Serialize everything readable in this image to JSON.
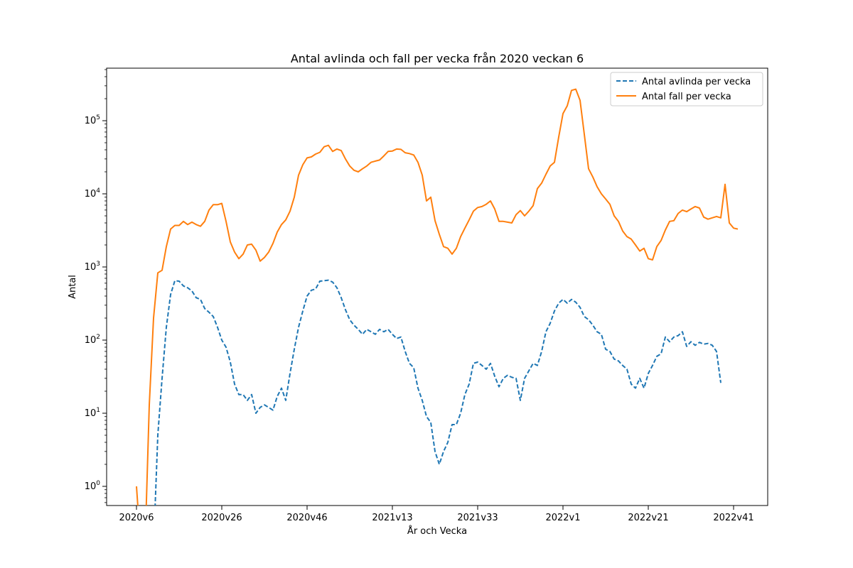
{
  "chart_data": {
    "type": "line",
    "title": "Antal avlinda och fall per vecka från 2020 veckan 6",
    "xlabel": "År och Vecka",
    "ylabel": "Antal",
    "yscale": "log",
    "ylim": [
      0.55,
      450000
    ],
    "grid": false,
    "legend_position": "top-right",
    "x_ticks": [
      "2020v6",
      "2020v26",
      "2020v46",
      "2021v13",
      "2021v33",
      "2022v1",
      "2022v21",
      "2022v41"
    ],
    "x_tick_week_index": [
      0,
      20,
      40,
      60,
      80,
      100,
      120,
      140
    ],
    "y_ticks": [
      {
        "exp": "0",
        "value": 1
      },
      {
        "exp": "1",
        "value": 10
      },
      {
        "exp": "2",
        "value": 100
      },
      {
        "exp": "3",
        "value": 1000
      },
      {
        "exp": "4",
        "value": 10000
      },
      {
        "exp": "5",
        "value": 100000
      }
    ],
    "series": [
      {
        "name": "Antal avlinda per vecka",
        "color": "#1f77b4",
        "dash": "dashed",
        "values": [
          0,
          0,
          0,
          0,
          0,
          5,
          30,
          150,
          420,
          650,
          640,
          550,
          520,
          470,
          380,
          360,
          270,
          240,
          210,
          150,
          100,
          80,
          50,
          25,
          18,
          18,
          15,
          18,
          10,
          12,
          13,
          12,
          11,
          17,
          22,
          15,
          35,
          75,
          150,
          250,
          400,
          480,
          500,
          640,
          650,
          660,
          620,
          520,
          380,
          260,
          190,
          160,
          140,
          120,
          140,
          130,
          120,
          140,
          130,
          140,
          120,
          105,
          110,
          70,
          48,
          42,
          22,
          15,
          9,
          7.5,
          3,
          2,
          3,
          4,
          7,
          7,
          10,
          18,
          25,
          48,
          50,
          45,
          40,
          48,
          32,
          23,
          30,
          33,
          31,
          30,
          15,
          30,
          38,
          48,
          45,
          70,
          130,
          170,
          250,
          320,
          360,
          320,
          360,
          330,
          280,
          210,
          190,
          160,
          130,
          120,
          75,
          70,
          55,
          52,
          45,
          40,
          25,
          22,
          30,
          22,
          35,
          45,
          60,
          65,
          110,
          95,
          110,
          115,
          130,
          82,
          95,
          85,
          93,
          88,
          90,
          85,
          70,
          26
        ]
      },
      {
        "name": "Antal fall per vecka",
        "color": "#ff7f0e",
        "dash": "solid",
        "values": [
          1,
          0,
          0,
          13,
          200,
          830,
          900,
          1900,
          3300,
          3700,
          3700,
          4200,
          3800,
          4100,
          3800,
          3600,
          4200,
          6000,
          7100,
          7100,
          7400,
          4200,
          2200,
          1600,
          1300,
          1500,
          2000,
          2050,
          1700,
          1200,
          1350,
          1600,
          2100,
          3000,
          3800,
          4400,
          5800,
          9000,
          18000,
          25000,
          31000,
          32000,
          35000,
          37000,
          44000,
          46000,
          38000,
          41000,
          39000,
          30000,
          24000,
          21000,
          20000,
          22000,
          24000,
          27000,
          28000,
          29000,
          33000,
          38000,
          38500,
          41000,
          40500,
          36500,
          35500,
          34000,
          27000,
          18000,
          8000,
          9000,
          4300,
          2800,
          1900,
          1800,
          1500,
          1800,
          2600,
          3400,
          4400,
          5800,
          6500,
          6700,
          7200,
          8000,
          6200,
          4200,
          4200,
          4100,
          4000,
          5200,
          5900,
          5000,
          5800,
          6900,
          11800,
          14000,
          18500,
          24000,
          27000,
          60000,
          125000,
          160000,
          260000,
          270000,
          190000,
          65000,
          22000,
          17000,
          12500,
          10000,
          8500,
          7200,
          5000,
          4200,
          3100,
          2600,
          2400,
          2000,
          1650,
          1800,
          1300,
          1250,
          1900,
          2300,
          3200,
          4200,
          4300,
          5400,
          6000,
          5700,
          6200,
          6700,
          6400,
          4800,
          4500,
          4700,
          4900,
          4700,
          13500,
          4000,
          3400,
          3300
        ]
      }
    ]
  }
}
